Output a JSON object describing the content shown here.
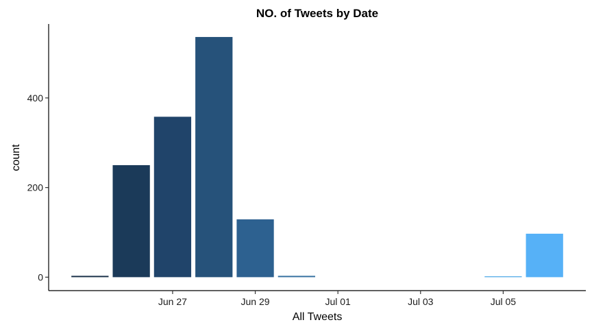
{
  "chart_data": {
    "type": "bar",
    "title": "NO. of Tweets by Date",
    "xlabel": "All Tweets",
    "ylabel": "count",
    "x_type": "date",
    "categories": [
      "2022-06-25",
      "2022-06-26",
      "2022-06-27",
      "2022-06-28",
      "2022-06-29",
      "2022-06-30",
      "2022-07-01",
      "2022-07-02",
      "2022-07-03",
      "2022-07-04",
      "2022-07-05",
      "2022-07-06"
    ],
    "values": [
      3,
      250,
      358,
      536,
      129,
      3,
      0,
      0,
      0,
      0,
      2,
      97
    ],
    "colors": [
      "#172E46",
      "#1B3A59",
      "#20446A",
      "#26527A",
      "#2D6190",
      "#336F9F",
      "#3A7EB2",
      "#4089C0",
      "#4795CE",
      "#4EA1DC",
      "#53ACE9",
      "#56B1F7"
    ],
    "xlim": [
      "2022-06-24",
      "2022-07-07"
    ],
    "xticks": [
      {
        "date": "2022-06-27",
        "label": "Jun 27"
      },
      {
        "date": "2022-06-29",
        "label": "Jun 29"
      },
      {
        "date": "2022-07-01",
        "label": "Jul 01"
      },
      {
        "date": "2022-07-03",
        "label": "Jul 03"
      },
      {
        "date": "2022-07-05",
        "label": "Jul 05"
      }
    ],
    "ylim": [
      -30,
      565
    ],
    "yticks": [
      0,
      200,
      400
    ],
    "grid": false,
    "legend": "none"
  }
}
